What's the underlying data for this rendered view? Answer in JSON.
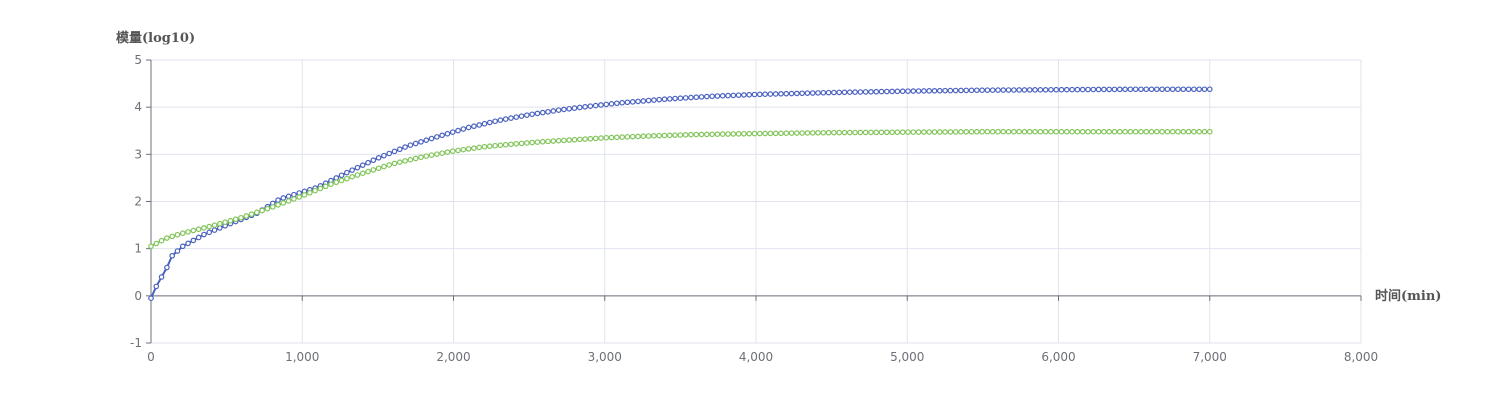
{
  "chart_data": {
    "type": "scatter",
    "xlabel": "时间(min)",
    "ylabel": "模量(log10)",
    "xlim": [
      0,
      8000
    ],
    "ylim": [
      -1,
      5
    ],
    "x_ticks": [
      "0",
      "1,000",
      "2,000",
      "3,000",
      "4,000",
      "5,000",
      "6,000",
      "7,000",
      "8,000"
    ],
    "y_ticks": [
      "5",
      "4",
      "3",
      "2",
      "1",
      "0",
      "-1"
    ],
    "grid": true,
    "legend": "none",
    "series": [
      {
        "color": "#4a62c0",
        "x": [
          0,
          35,
          70,
          105,
          140,
          210,
          350,
          500,
          700,
          850,
          950,
          1100,
          1300,
          1500,
          1700,
          1900,
          2100,
          2300,
          2500,
          2700,
          2900,
          3100,
          3400,
          3700,
          4000,
          4500,
          5000,
          5500,
          6000,
          6500,
          7000
        ],
        "y": [
          -0.05,
          0.2,
          0.4,
          0.6,
          0.85,
          1.05,
          1.3,
          1.5,
          1.75,
          2.05,
          2.15,
          2.3,
          2.62,
          2.92,
          3.18,
          3.38,
          3.57,
          3.72,
          3.84,
          3.94,
          4.02,
          4.09,
          4.17,
          4.23,
          4.27,
          4.31,
          4.34,
          4.36,
          4.37,
          4.38,
          4.38
        ]
      },
      {
        "color": "#82c55a",
        "x": [
          0,
          100,
          200,
          400,
          600,
          800,
          1000,
          1200,
          1400,
          1600,
          1800,
          2000,
          2200,
          2400,
          2600,
          2800,
          3000,
          3300,
          3600,
          4000,
          4500,
          5000,
          5500,
          6000,
          6500,
          7000
        ],
        "y": [
          1.05,
          1.22,
          1.32,
          1.48,
          1.66,
          1.88,
          2.12,
          2.38,
          2.6,
          2.8,
          2.95,
          3.07,
          3.16,
          3.22,
          3.27,
          3.31,
          3.35,
          3.39,
          3.42,
          3.44,
          3.46,
          3.47,
          3.48,
          3.48,
          3.48,
          3.48
        ]
      }
    ]
  }
}
